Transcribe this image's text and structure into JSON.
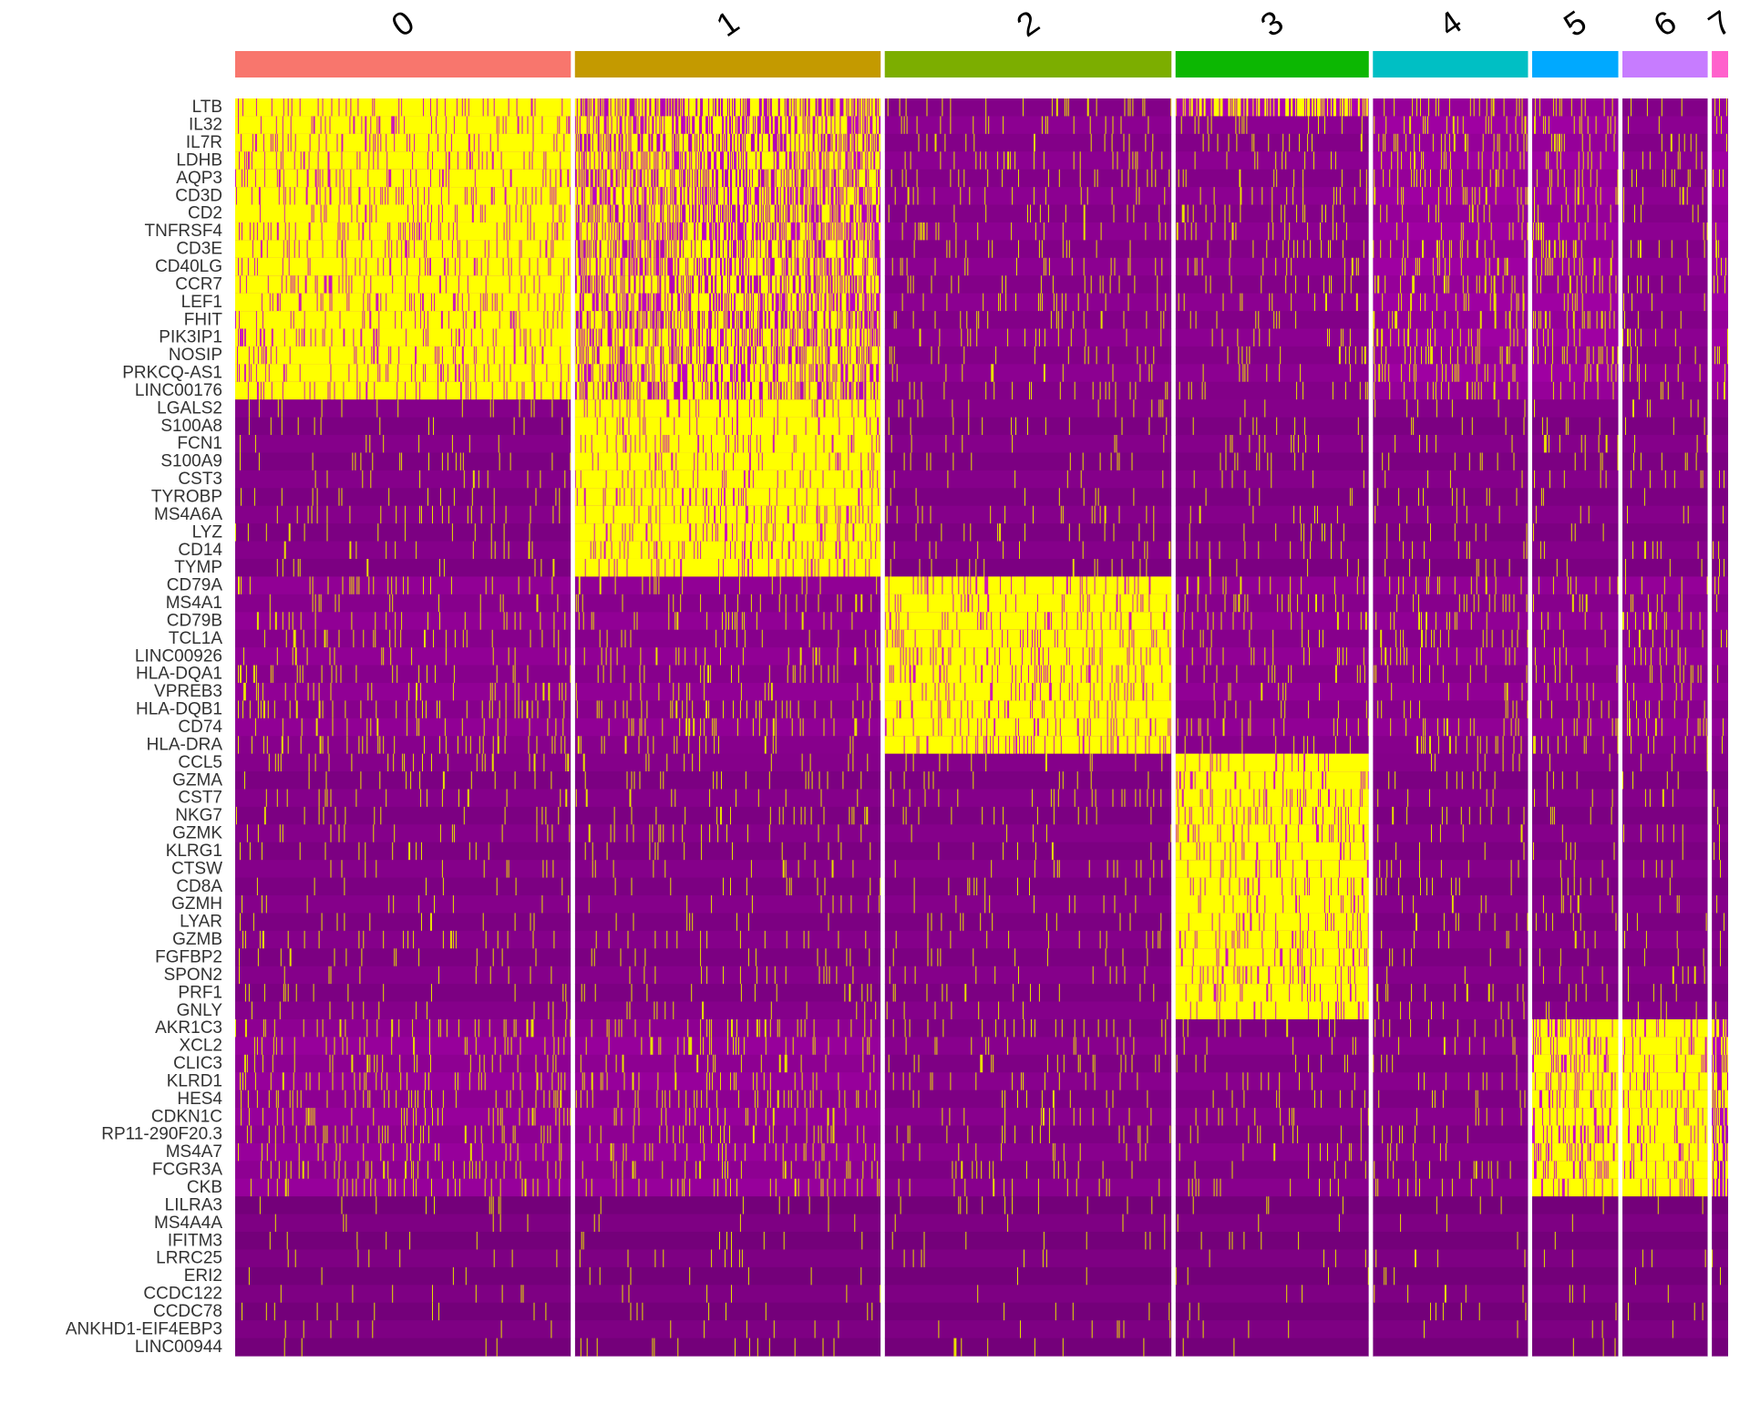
{
  "chart_data": {
    "type": "heatmap",
    "title": "",
    "xlabel": "",
    "ylabel": "",
    "clusters": [
      {
        "label": "0",
        "color": "#F8766D",
        "cells": 370
      },
      {
        "label": "1",
        "color": "#C49A00",
        "cells": 337
      },
      {
        "label": "2",
        "color": "#7CAE00",
        "cells": 316
      },
      {
        "label": "3",
        "color": "#0CB702",
        "cells": 213
      },
      {
        "label": "4",
        "color": "#00BFC4",
        "cells": 171
      },
      {
        "label": "5",
        "color": "#00A9FF",
        "cells": 95
      },
      {
        "label": "6",
        "color": "#C77CFF",
        "cells": 94
      },
      {
        "label": "7",
        "color": "#FF61CC",
        "cells": 18
      }
    ],
    "genes": [
      "LTB",
      "IL32",
      "IL7R",
      "LDHB",
      "AQP3",
      "CD3D",
      "CD2",
      "TNFRSF4",
      "CD3E",
      "CD40LG",
      "CCR7",
      "LEF1",
      "FHIT",
      "PIK3IP1",
      "NOSIP",
      "PRKCQ-AS1",
      "LINC00176",
      "LGALS2",
      "S100A8",
      "FCN1",
      "S100A9",
      "CST3",
      "TYROBP",
      "MS4A6A",
      "LYZ",
      "CD14",
      "TYMP",
      "CD79A",
      "MS4A1",
      "CD79B",
      "TCL1A",
      "LINC00926",
      "HLA-DQA1",
      "VPREB3",
      "HLA-DQB1",
      "CD74",
      "HLA-DRA",
      "CCL5",
      "GZMA",
      "CST7",
      "NKG7",
      "GZMK",
      "KLRG1",
      "CTSW",
      "CD8A",
      "GZMH",
      "LYAR",
      "GZMB",
      "FGFBP2",
      "SPON2",
      "PRF1",
      "GNLY",
      "AKR1C3",
      "XCL2",
      "CLIC3",
      "KLRD1",
      "HES4",
      "CDKN1C",
      "RP11-290F20.3",
      "MS4A7",
      "FCGR3A",
      "CKB",
      "LILRA3",
      "MS4A4A",
      "IFITM3",
      "LRRC25",
      "ERI2",
      "CCDC122",
      "CCDC78",
      "ANKHD1-EIF4EBP3",
      "LINC00944"
    ],
    "marker_gene_count": [
      17,
      10,
      10,
      15,
      0,
      0,
      10,
      0
    ],
    "expression_range": [
      -2.5,
      2.5
    ],
    "color_scale": [
      "#000000",
      "#FF00FF",
      "#FFFF00"
    ],
    "legend": "none"
  }
}
